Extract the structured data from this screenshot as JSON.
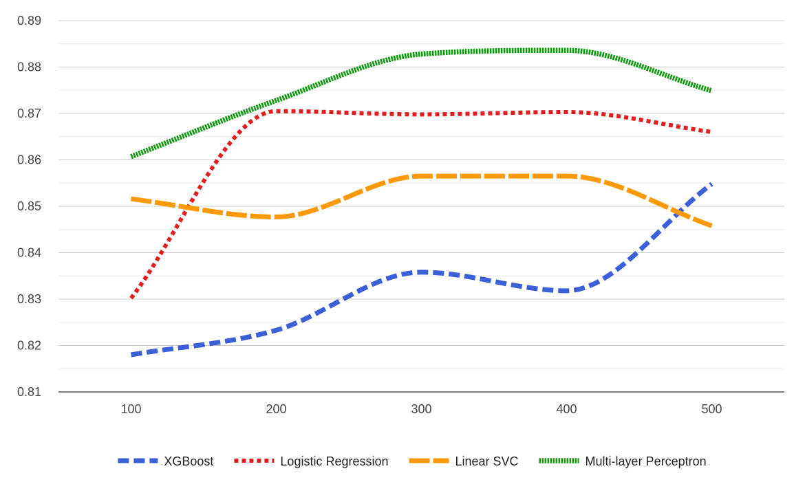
{
  "chart_data": {
    "type": "line",
    "title": "",
    "xlabel": "",
    "ylabel": "",
    "smooth": true,
    "grid": true,
    "legend_position": "bottom",
    "x": [
      100,
      200,
      300,
      400,
      500
    ],
    "x_tick_labels": [
      "100",
      "200",
      "300",
      "400",
      "500"
    ],
    "xlim": [
      50,
      550
    ],
    "ylim": [
      0.81,
      0.89
    ],
    "y_ticks": [
      0.81,
      0.82,
      0.83,
      0.84,
      0.85,
      0.86,
      0.87,
      0.88,
      0.89
    ],
    "y_tick_labels": [
      "0.81",
      "0.82",
      "0.83",
      "0.84",
      "0.85",
      "0.86",
      "0.87",
      "0.88",
      "0.89"
    ],
    "series": [
      {
        "name": "XGBoost",
        "color": "#3b5fd6",
        "style": "dashed",
        "values": [
          0.818,
          0.8233,
          0.8358,
          0.8318,
          0.8548
        ]
      },
      {
        "name": "Logistic Regression",
        "color": "#e02020",
        "style": "dotted",
        "values": [
          0.8302,
          0.8705,
          0.8698,
          0.8703,
          0.866
        ]
      },
      {
        "name": "Linear SVC",
        "color": "#fb9a06",
        "style": "long-dash",
        "values": [
          0.8516,
          0.8477,
          0.8565,
          0.8565,
          0.8458
        ]
      },
      {
        "name": "Multi-layer Perceptron",
        "color": "#0f9a12",
        "style": "dense-dotted",
        "values": [
          0.8607,
          0.8728,
          0.8828,
          0.8836,
          0.8749
        ]
      }
    ]
  }
}
